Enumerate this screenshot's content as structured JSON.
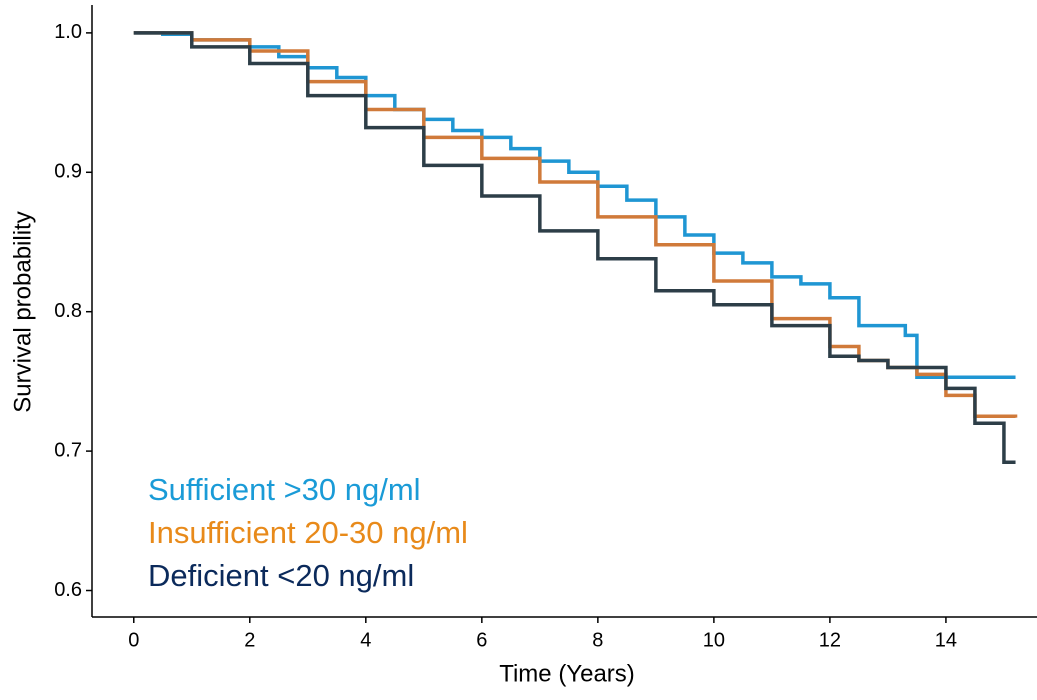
{
  "chart_data": {
    "type": "step",
    "x_label": "Time (Years)",
    "y_label": "Survival probability",
    "xlim": [
      -0.72,
      15.57
    ],
    "ylim": [
      0.581,
      1.02
    ],
    "xticks": [
      0,
      2,
      4,
      6,
      8,
      10,
      12,
      14
    ],
    "yticks": [
      0.6,
      0.7,
      0.8,
      0.9,
      {
        "value": 1,
        "label": "1.0"
      }
    ],
    "series": [
      {
        "name": "Sufficient >30 ng/ml",
        "color": "#1f96d3",
        "label_color": "#1a9bd7",
        "x": [
          0,
          0.5,
          1,
          2,
          2.5,
          3,
          3.5,
          4,
          4.5,
          5,
          5.5,
          6,
          6.5,
          7,
          7.5,
          8,
          8.5,
          9,
          9.5,
          10,
          10.5,
          11,
          11.5,
          12,
          12.5,
          13,
          13.3,
          13.5,
          15.2
        ],
        "values": [
          1.0,
          0.999,
          0.995,
          0.99,
          0.983,
          0.975,
          0.968,
          0.955,
          0.945,
          0.938,
          0.93,
          0.925,
          0.917,
          0.908,
          0.9,
          0.89,
          0.88,
          0.868,
          0.855,
          0.842,
          0.835,
          0.825,
          0.82,
          0.81,
          0.79,
          0.79,
          0.783,
          0.753,
          0.753
        ]
      },
      {
        "name": "Insufficient 20-30 ng/ml",
        "color": "#d07a3a",
        "label_color": "#e88a1a",
        "x": [
          0,
          1,
          2,
          3,
          4,
          5,
          6,
          7,
          8,
          9,
          10,
          11,
          12,
          12.5,
          13,
          13.5,
          14,
          14.5,
          15.2
        ],
        "values": [
          1.0,
          0.995,
          0.987,
          0.965,
          0.945,
          0.925,
          0.91,
          0.893,
          0.868,
          0.848,
          0.822,
          0.795,
          0.775,
          0.765,
          0.76,
          0.755,
          0.74,
          0.725,
          0.724
        ]
      },
      {
        "name": "Deficient <20 ng/ml",
        "color": "#2d3e48",
        "label_color": "#0b2a5b",
        "x": [
          0,
          1,
          2,
          3,
          4,
          5,
          6,
          7,
          8,
          9,
          10,
          11,
          12,
          12.5,
          13,
          14,
          14.5,
          15,
          15.2
        ],
        "values": [
          1.0,
          0.99,
          0.978,
          0.955,
          0.932,
          0.905,
          0.883,
          0.858,
          0.838,
          0.815,
          0.805,
          0.79,
          0.768,
          0.765,
          0.76,
          0.745,
          0.72,
          0.692,
          0.692
        ]
      }
    ]
  }
}
